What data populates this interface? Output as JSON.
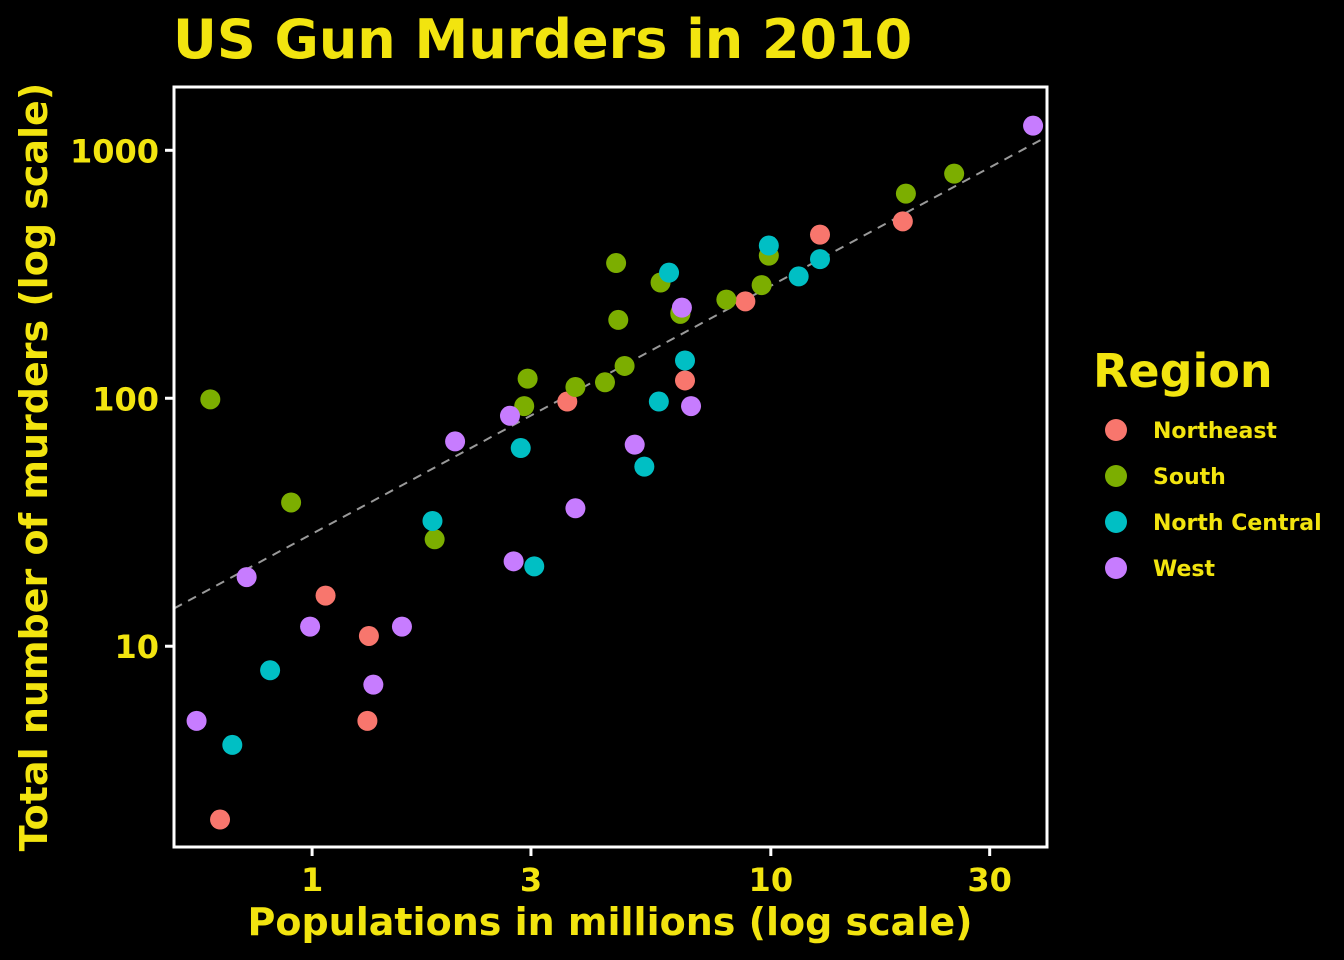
{
  "colors": {
    "background": "#000000",
    "text": "#F2E40F",
    "panel_border": "#FFFFFF",
    "reference_line": "#999999",
    "Northeast": "#F8766D",
    "South": "#7CAE00",
    "North Central": "#00BFC4",
    "West": "#C77CFF"
  },
  "chart_data": {
    "type": "scatter",
    "title": "US Gun Murders in 2010",
    "xlabel": "Populations in millions (log scale)",
    "ylabel": "Total number of murders (log scale)",
    "x_scale": "log10",
    "y_scale": "log10",
    "xlim": [
      0.5,
      40
    ],
    "ylim": [
      1.55,
      1800
    ],
    "x_ticks": [
      1,
      3,
      10,
      30
    ],
    "x_tick_labels": [
      "1",
      "3",
      "10",
      "30"
    ],
    "y_ticks": [
      10,
      100,
      1000
    ],
    "y_tick_labels": [
      "10",
      "100",
      "1000"
    ],
    "grid": false,
    "reference_line": {
      "style": "dashed",
      "slope_log10": 1,
      "murders_per_million": 28.4
    },
    "legend": {
      "title": "Region",
      "position": "right",
      "entries": [
        "Northeast",
        "South",
        "North Central",
        "West"
      ]
    },
    "series": [
      {
        "name": "Northeast",
        "points": [
          [
            0.63,
            2
          ],
          [
            1.07,
            16
          ],
          [
            1.32,
            5
          ],
          [
            1.33,
            11
          ],
          [
            3.6,
            97
          ],
          [
            6.5,
            118
          ],
          [
            8.8,
            246
          ],
          [
            12.8,
            457
          ],
          [
            19.4,
            517
          ]
        ]
      },
      {
        "name": "South",
        "points": [
          [
            0.6,
            99
          ],
          [
            0.9,
            38
          ],
          [
            1.85,
            27
          ],
          [
            2.9,
            93
          ],
          [
            2.95,
            120
          ],
          [
            3.75,
            111
          ],
          [
            4.35,
            116
          ],
          [
            4.6,
            351
          ],
          [
            4.65,
            207
          ],
          [
            4.8,
            135
          ],
          [
            5.75,
            293
          ],
          [
            6.35,
            219
          ],
          [
            6.35,
            221
          ],
          [
            8.0,
            250
          ],
          [
            9.55,
            286
          ],
          [
            9.9,
            376
          ],
          [
            19.7,
            669
          ],
          [
            25.1,
            805
          ]
        ]
      },
      {
        "name": "North Central",
        "points": [
          [
            0.67,
            4
          ],
          [
            0.81,
            8
          ],
          [
            1.83,
            32
          ],
          [
            2.85,
            63
          ],
          [
            3.05,
            21
          ],
          [
            5.3,
            53
          ],
          [
            5.7,
            97
          ],
          [
            6.0,
            321
          ],
          [
            6.5,
            142
          ],
          [
            9.9,
            413
          ],
          [
            11.5,
            310
          ],
          [
            12.8,
            364
          ]
        ]
      },
      {
        "name": "West",
        "points": [
          [
            0.56,
            5
          ],
          [
            0.72,
            19
          ],
          [
            0.99,
            12
          ],
          [
            1.36,
            7
          ],
          [
            1.57,
            12
          ],
          [
            2.05,
            67
          ],
          [
            2.7,
            85
          ],
          [
            2.75,
            22
          ],
          [
            3.75,
            36
          ],
          [
            5.05,
            65
          ],
          [
            6.4,
            232
          ],
          [
            6.7,
            93
          ],
          [
            37.3,
            1257
          ]
        ]
      }
    ]
  }
}
